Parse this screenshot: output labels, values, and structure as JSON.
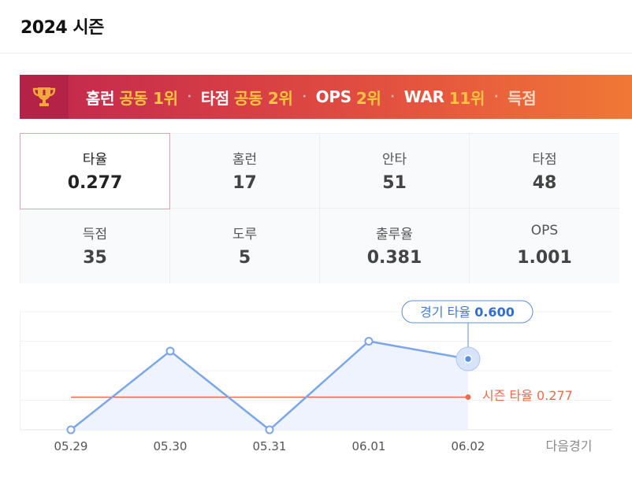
{
  "header": {
    "title": "2024 시즌"
  },
  "banner": {
    "icon": "trophy-icon",
    "ranks": [
      {
        "label": "홈런",
        "value": "공동 1위"
      },
      {
        "label": "타점",
        "value": "공동 2위"
      },
      {
        "label": "OPS",
        "value": "2위"
      },
      {
        "label": "WAR",
        "value": "11위"
      },
      {
        "label": "득점",
        "value": ""
      }
    ],
    "separator": "·"
  },
  "stats": [
    {
      "label": "타율",
      "value": "0.277",
      "active": true
    },
    {
      "label": "홈런",
      "value": "17"
    },
    {
      "label": "안타",
      "value": "51"
    },
    {
      "label": "타점",
      "value": "48"
    },
    {
      "label": "득점",
      "value": "35"
    },
    {
      "label": "도루",
      "value": "5"
    },
    {
      "label": "출루율",
      "value": "0.381"
    },
    {
      "label": "OPS",
      "value": "1.001"
    }
  ],
  "chart_data": {
    "type": "line",
    "x": [
      "05.29",
      "05.30",
      "05.31",
      "06.01",
      "06.02"
    ],
    "values": [
      0.0,
      0.667,
      0.0,
      0.75,
      0.6
    ],
    "ylim": [
      0,
      1
    ],
    "grid": true,
    "reference_line": {
      "label": "시즌 타율",
      "value": 0.277,
      "value_label": "0.277",
      "color": "#ef6a4a"
    },
    "tooltip": {
      "label": "경기 타율",
      "value": "0.600",
      "index": 4
    },
    "next_label": "다음경기",
    "line_color": "#7aa6ec",
    "fill_color": "#eef3fd"
  }
}
